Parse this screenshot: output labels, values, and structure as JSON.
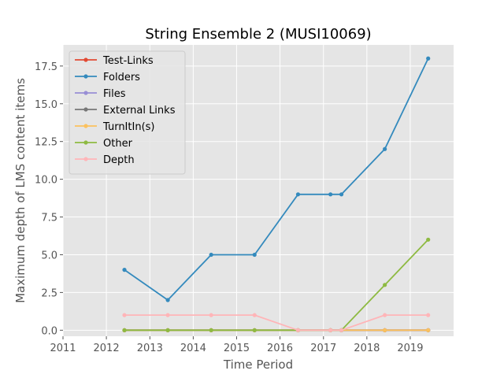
{
  "chart_data": {
    "type": "line",
    "title": "String Ensemble 2 (MUSI10069)",
    "xlabel": "Time Period",
    "ylabel": "Maximum depth of LMS content items",
    "xlim": [
      "2011-01-01",
      "2020-01-01"
    ],
    "ylim": [
      -0.4,
      18.9
    ],
    "xticks": [
      "2011",
      "2012",
      "2013",
      "2014",
      "2015",
      "2016",
      "2017",
      "2018",
      "2019"
    ],
    "yticks": [
      "0.0",
      "2.5",
      "5.0",
      "7.5",
      "10.0",
      "12.5",
      "15.0",
      "17.5"
    ],
    "grid": true,
    "legend_position": "top-left",
    "x": [
      "2012-06-01",
      "2013-06-01",
      "2014-06-01",
      "2015-06-01",
      "2016-06-01",
      "2017-03-01",
      "2017-06-01",
      "2018-06-01",
      "2019-06-01"
    ],
    "series": [
      {
        "name": "Test-Links",
        "color": "#e24a33",
        "values": [
          0,
          0,
          0,
          0,
          0,
          0,
          0,
          0,
          0
        ]
      },
      {
        "name": "Folders",
        "color": "#348abd",
        "values": [
          4,
          2,
          5,
          5,
          9,
          9,
          9,
          12,
          18
        ]
      },
      {
        "name": "Files",
        "color": "#988ed5",
        "values": [
          0,
          0,
          0,
          0,
          0,
          0,
          0,
          0,
          0
        ]
      },
      {
        "name": "External Links",
        "color": "#777777",
        "values": [
          0,
          0,
          0,
          0,
          0,
          0,
          0,
          0,
          0
        ]
      },
      {
        "name": "TurnItIn(s)",
        "color": "#fbc15e",
        "values": [
          0,
          0,
          0,
          0,
          0,
          0,
          0,
          0,
          0
        ]
      },
      {
        "name": "Other",
        "color": "#8eba42",
        "values": [
          0,
          0,
          0,
          0,
          0,
          0,
          0,
          3,
          6
        ]
      },
      {
        "name": "Depth",
        "color": "#ffb5b8",
        "values": [
          1,
          1,
          1,
          1,
          0,
          0,
          0,
          1,
          1
        ]
      }
    ]
  }
}
